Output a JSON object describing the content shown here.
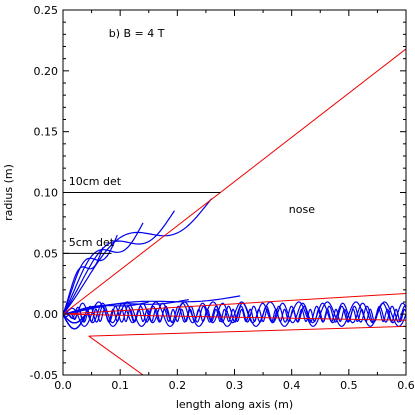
{
  "chart_data": {
    "type": "line",
    "xlabel": "length along axis (m)",
    "ylabel": "radius (m)",
    "xlim": [
      0.0,
      0.6
    ],
    "ylim": [
      -0.05,
      0.25
    ],
    "x_ticks": [
      0.0,
      0.1,
      0.2,
      0.3,
      0.4,
      0.5,
      0.6
    ],
    "x_tick_labels": [
      "0.0",
      "0.1",
      "0.2",
      "0.3",
      "0.4",
      "0.5",
      "0.6"
    ],
    "y_ticks": [
      -0.05,
      0.0,
      0.05,
      0.1,
      0.15,
      0.2,
      0.25
    ],
    "y_tick_labels": [
      "-0.05",
      "0.00",
      "0.05",
      "0.10",
      "0.15",
      "0.20",
      "0.25"
    ],
    "grid": false,
    "annotations": [
      {
        "text": "b) B = 4 T",
        "x": 0.08,
        "y": 0.228
      },
      {
        "text": "10cm det",
        "x": 0.01,
        "y": 0.106
      },
      {
        "text": "5cm det",
        "x": 0.01,
        "y": 0.056
      },
      {
        "text": "nose",
        "x": 0.395,
        "y": 0.083
      }
    ],
    "colors": {
      "tracks": "#0000ee",
      "boundary": "#ee0000",
      "detector": "#000000"
    },
    "detector_lines": [
      {
        "label": "10cm det",
        "x": [
          0.0,
          0.275
        ],
        "y": [
          0.1,
          0.1
        ]
      },
      {
        "label": "5cm det",
        "x": [
          0.0,
          0.085
        ],
        "y": [
          0.05,
          0.05
        ]
      }
    ],
    "boundary_lines": [
      {
        "x": [
          0.0,
          0.6
        ],
        "y": [
          0.0,
          0.218
        ]
      },
      {
        "x": [
          0.0,
          0.6
        ],
        "y": [
          0.0,
          0.017
        ]
      },
      {
        "x": [
          0.0,
          0.6
        ],
        "y": [
          0.0,
          -0.005
        ]
      },
      {
        "x": [
          0.045,
          0.6
        ],
        "y": [
          -0.018,
          -0.01
        ]
      },
      {
        "x": [
          0.045,
          0.14
        ],
        "y": [
          -0.018,
          -0.05
        ]
      }
    ],
    "fan_tracks": [
      {
        "r": 0.15,
        "angle_deg": 18,
        "x_end": 0.26,
        "y_end": 0.095
      },
      {
        "r": 0.11,
        "angle_deg": 23,
        "x_end": 0.195,
        "y_end": 0.085
      },
      {
        "r": 0.075,
        "angle_deg": 30,
        "x_end": 0.14,
        "y_end": 0.075
      },
      {
        "r": 0.055,
        "angle_deg": 38,
        "x_end": 0.095,
        "y_end": 0.065
      },
      {
        "r": 0.045,
        "angle_deg": 48,
        "x_end": 0.07,
        "y_end": 0.055
      },
      {
        "r": 0.1,
        "angle_deg": 10,
        "x_end": 0.31,
        "y_end": 0.015
      },
      {
        "r": 0.07,
        "angle_deg": 14,
        "x_end": 0.22,
        "y_end": 0.012
      },
      {
        "r": 0.05,
        "angle_deg": 20,
        "x_end": 0.15,
        "y_end": 0.01
      }
    ],
    "helix_tracks": [
      {
        "amplitude": 0.01,
        "wavelength": 0.05,
        "offset": 0.0,
        "phase": 0.0
      },
      {
        "amplitude": 0.0065,
        "wavelength": 0.022,
        "offset": 0.0,
        "phase": 0.5
      },
      {
        "amplitude": 0.008,
        "wavelength": 0.035,
        "offset": 0.001,
        "phase": 1.7
      },
      {
        "amplitude": 0.005,
        "wavelength": 0.015,
        "offset": -0.001,
        "phase": 2.6
      }
    ]
  }
}
